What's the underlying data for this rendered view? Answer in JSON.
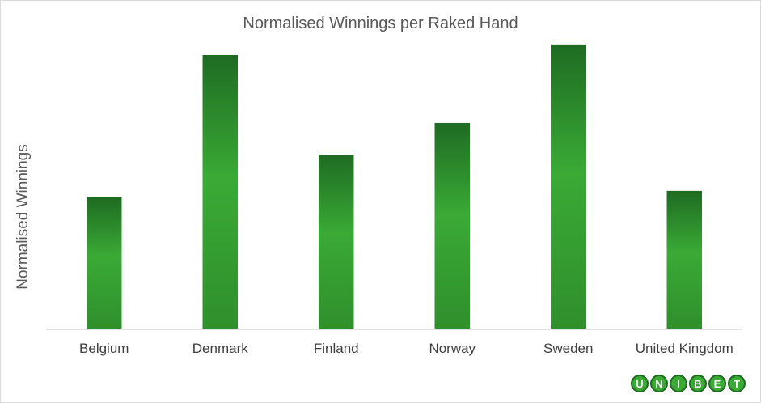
{
  "chart_data": {
    "type": "bar",
    "title": "Normalised Winnings per Raked Hand",
    "ylabel": "Normalised Winnings",
    "xlabel": "",
    "categories": [
      "Belgium",
      "Denmark",
      "Finland",
      "Norway",
      "Sweden",
      "United Kingdom"
    ],
    "values": [
      162,
      336,
      214,
      253,
      349,
      170
    ],
    "ylim": [
      0,
      360
    ],
    "grid": false,
    "bar_color_top": "#1e6b22",
    "bar_color_mid": "#3aaa35"
  },
  "logo": {
    "letters": [
      "U",
      "N",
      "I",
      "B",
      "E",
      "T"
    ]
  }
}
